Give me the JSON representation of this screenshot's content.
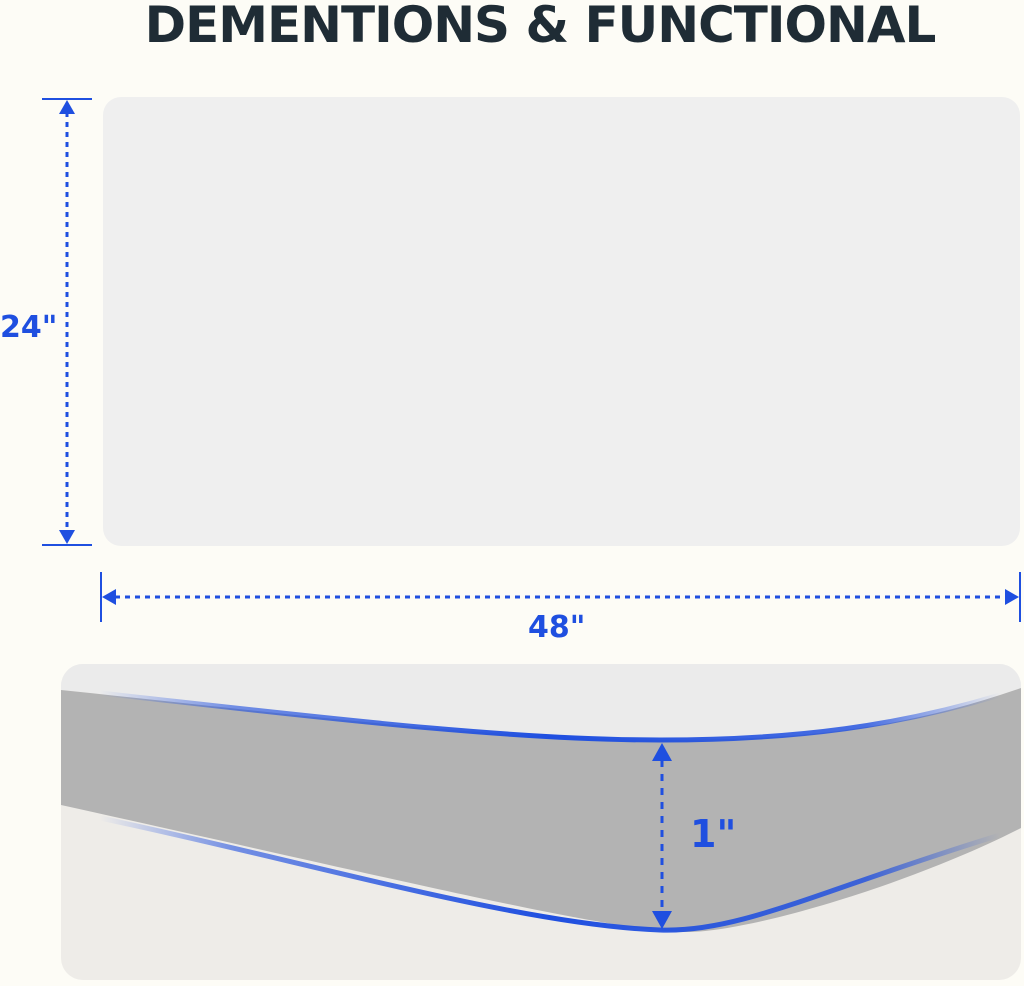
{
  "title": "DEMENTIONS & FUNCTIONAL",
  "dimensions": {
    "height": "24\"",
    "width": "48\"",
    "thickness": "1\""
  },
  "colors": {
    "accent": "#1f4fe0",
    "title": "#1f2c35",
    "board": "#efefef",
    "edge": "#b3b3b3"
  }
}
